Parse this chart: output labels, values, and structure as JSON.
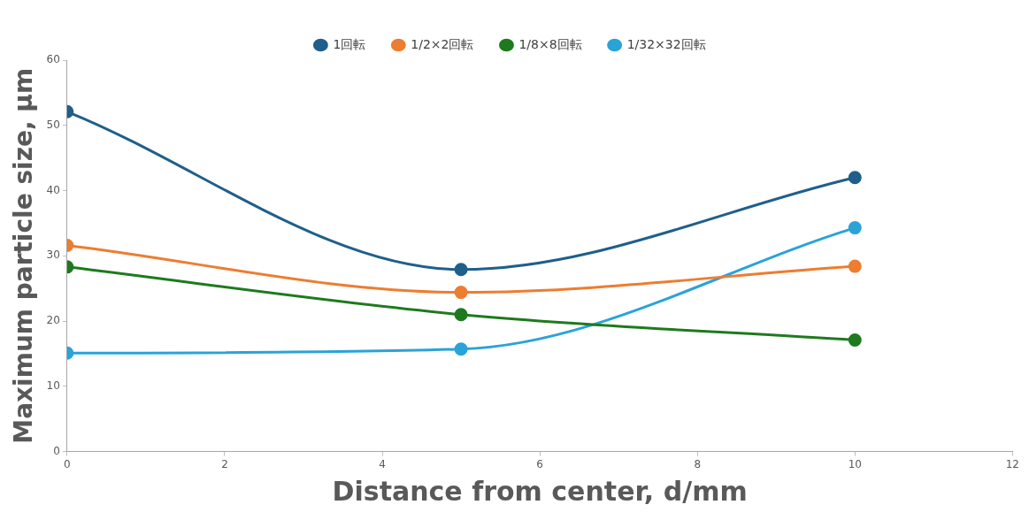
{
  "chart_data": {
    "type": "line",
    "xlabel": "Distance from center, d/mm",
    "ylabel": "Maximum particle size, μm",
    "x": [
      0,
      5,
      10
    ],
    "series": [
      {
        "name": "1回転",
        "color": "#1f5f8b",
        "values": [
          52.1,
          27.9,
          42.0
        ]
      },
      {
        "name": "1/2×2回転",
        "color": "#ed7d31",
        "values": [
          31.6,
          24.4,
          28.4
        ]
      },
      {
        "name": "1/8×8回転",
        "color": "#1e7a1e",
        "values": [
          28.3,
          21.0,
          17.1
        ]
      },
      {
        "name": "1/32×32回転",
        "color": "#2aa3d8",
        "values": [
          15.1,
          15.7,
          34.3
        ]
      }
    ],
    "xlim": [
      0,
      12
    ],
    "xticks": [
      0,
      2,
      4,
      6,
      8,
      10,
      12
    ],
    "ylim": [
      0,
      60
    ],
    "yticks": [
      0,
      10,
      20,
      30,
      40,
      50,
      60
    ],
    "grid": false,
    "legend": "top",
    "marker": "circle",
    "line_style": "solid"
  }
}
